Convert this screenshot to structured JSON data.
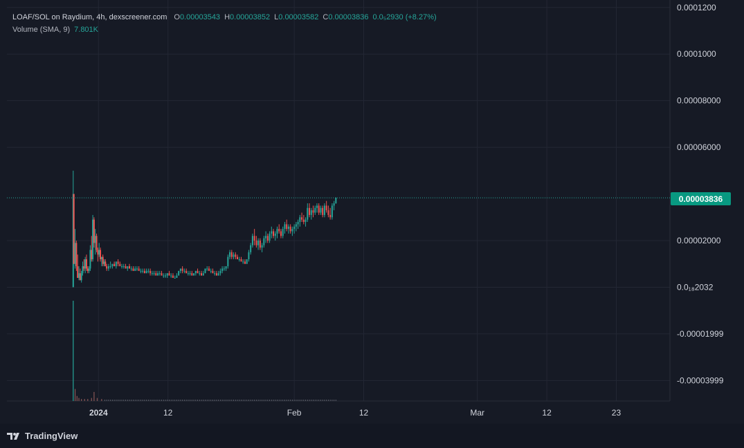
{
  "legend": {
    "pair": "LOAF/SOL on Raydium, 4h, dexscreener.com",
    "o_label": "O",
    "o_value": "0.00003543",
    "h_label": "H",
    "h_value": "0.00003852",
    "l_label": "L",
    "l_value": "0.00003582",
    "c_label": "C",
    "c_value": "0.00003836",
    "change": "0.0₅2930 (+8.27%)",
    "volume_label": "Volume (SMA, 9)",
    "volume_value": "7.801K"
  },
  "footer": {
    "brand": "TradingView"
  },
  "last_price_label": "0.00003836",
  "colors": {
    "up": "#26a69a",
    "down": "#ef5350",
    "bg": "#161a25",
    "grid": "#232734"
  },
  "chart_data": {
    "type": "candlestick",
    "title": "LOAF/SOL on Raydium, 4h, dexscreener.com",
    "y_ticks": [
      {
        "value": 0.00012,
        "label": "0.0001200"
      },
      {
        "value": 0.0001,
        "label": "0.0001000"
      },
      {
        "value": 8e-05,
        "label": "0.00008000"
      },
      {
        "value": 6e-05,
        "label": "0.00006000"
      },
      {
        "value": 2e-05,
        "label": "0.00002000"
      },
      {
        "value": 0.0,
        "label": "0.0₁₈2032"
      },
      {
        "value": -2e-05,
        "label": "-0.00001999"
      },
      {
        "value": -4e-05,
        "label": "-0.00003999"
      }
    ],
    "ylim": [
      -4.88e-05,
      0.0001232
    ],
    "x_ticks": [
      {
        "value": 4,
        "label": "2024",
        "bold": true
      },
      {
        "value": 15,
        "label": "12"
      },
      {
        "value": 35,
        "label": "Feb"
      },
      {
        "value": 46,
        "label": "12"
      },
      {
        "value": 64,
        "label": "Mar"
      },
      {
        "value": 75,
        "label": "12"
      },
      {
        "value": 86,
        "label": "23"
      }
    ],
    "xlim": [
      -10.5,
      94.5
    ],
    "last_price": 3.836e-05,
    "candles": [
      [
        0.0,
        0.0,
        5e-05,
        0.0,
        4e-05
      ],
      [
        0.1,
        4e-05,
        4e-05,
        1e-05,
        1e-05
      ],
      [
        0.3,
        1e-05,
        2.5e-05,
        8e-06,
        1.9e-05
      ],
      [
        0.5,
        1.9e-05,
        2e-05,
        7e-06,
        9e-06
      ],
      [
        0.7,
        9e-06,
        1.4e-05,
        4e-06,
        4e-06
      ],
      [
        0.9,
        4e-06,
        9e-06,
        3e-06,
        6e-06
      ],
      [
        1.1,
        6e-06,
        8e-06,
        3e-06,
        3e-06
      ],
      [
        1.3,
        3e-06,
        7e-06,
        2e-06,
        6e-06
      ],
      [
        1.5,
        6e-06,
        1.1e-05,
        5e-06,
        9e-06
      ],
      [
        1.7,
        9e-06,
        1.2e-05,
        7e-06,
        8e-06
      ],
      [
        1.9,
        8e-06,
        1.3e-05,
        6e-06,
        1.2e-05
      ],
      [
        2.1,
        1.2e-05,
        1.4e-05,
        7e-06,
        8e-06
      ],
      [
        2.3,
        8e-06,
        9e-06,
        6e-06,
        7e-06
      ],
      [
        2.5,
        7e-06,
        9e-06,
        6e-06,
        8e-06
      ],
      [
        2.7,
        8e-06,
        1.8e-05,
        7e-06,
        1.6e-05
      ],
      [
        2.9,
        1.6e-05,
        2.2e-05,
        1.1e-05,
        1.2e-05
      ],
      [
        3.1,
        1.2e-05,
        3.1e-05,
        1.1e-05,
        2.9e-05
      ],
      [
        3.3,
        2.9e-05,
        3e-05,
        1.7e-05,
        1.9e-05
      ],
      [
        3.5,
        1.9e-05,
        2.5e-05,
        1.4e-05,
        2.2e-05
      ],
      [
        3.7,
        2.2e-05,
        2.3e-05,
        1.5e-05,
        1.6e-05
      ],
      [
        3.9,
        1.6e-05,
        1.7e-05,
        1.1e-05,
        1.4e-05
      ],
      [
        4.1,
        1.4e-05,
        1.9e-05,
        1.3e-05,
        1.6e-05
      ],
      [
        4.3,
        1.6e-05,
        1.7e-05,
        1.1e-05,
        1.2e-05
      ],
      [
        4.5,
        1.2e-05,
        1.3e-05,
        9e-06,
        1.3e-05
      ],
      [
        4.7,
        1.3e-05,
        1.4e-05,
        9e-06,
        1e-05
      ],
      [
        4.9,
        1e-05,
        1.2e-05,
        9e-06,
        1.1e-05
      ],
      [
        5.1,
        1.1e-05,
        1.2e-05,
        9e-06,
        9e-06
      ],
      [
        5.3,
        9e-06,
        1e-05,
        7e-06,
        8e-06
      ],
      [
        5.6,
        8e-06,
        1e-05,
        7e-06,
        9e-06
      ],
      [
        5.9,
        9e-06,
        1.1e-05,
        8e-06,
        9e-06
      ],
      [
        6.2,
        9e-06,
        1e-05,
        8e-06,
        1e-05
      ],
      [
        6.5,
        1e-05,
        1.1e-05,
        9e-06,
        9e-06
      ],
      [
        6.8,
        9e-06,
        1.1e-05,
        8e-06,
        1.1e-05
      ],
      [
        7.1,
        1.1e-05,
        1.2e-05,
        9e-06,
        1e-05
      ],
      [
        7.4,
        1e-05,
        1.1e-05,
        9e-06,
        9e-06
      ],
      [
        7.7,
        9e-06,
        1e-05,
        8e-06,
        9e-06
      ],
      [
        8.0,
        9e-06,
        1e-05,
        8e-06,
        9e-06
      ],
      [
        8.3,
        9e-06,
        1e-05,
        8e-06,
        8e-06
      ],
      [
        8.6,
        8e-06,
        9e-06,
        7e-06,
        9e-06
      ],
      [
        8.9,
        9e-06,
        1e-05,
        8e-06,
        8e-06
      ],
      [
        9.2,
        8e-06,
        9e-06,
        7e-06,
        8e-06
      ],
      [
        9.5,
        8e-06,
        9e-06,
        7e-06,
        7e-06
      ],
      [
        9.8,
        7e-06,
        9e-06,
        7e-06,
        8e-06
      ],
      [
        10.1,
        8e-06,
        9e-06,
        7e-06,
        8e-06
      ],
      [
        10.4,
        8e-06,
        9e-06,
        7e-06,
        7e-06
      ],
      [
        10.7,
        7e-06,
        8e-06,
        6e-06,
        7e-06
      ],
      [
        11.0,
        7e-06,
        8e-06,
        6e-06,
        7e-06
      ],
      [
        11.3,
        7e-06,
        8e-06,
        6e-06,
        6e-06
      ],
      [
        11.6,
        6e-06,
        8e-06,
        6e-06,
        7e-06
      ],
      [
        11.9,
        7e-06,
        8e-06,
        6e-06,
        7e-06
      ],
      [
        12.2,
        7e-06,
        8e-06,
        5e-06,
        6e-06
      ],
      [
        12.5,
        6e-06,
        7e-06,
        5e-06,
        6e-06
      ],
      [
        12.8,
        6e-06,
        7e-06,
        5e-06,
        6e-06
      ],
      [
        13.1,
        6e-06,
        7e-06,
        5e-06,
        5e-06
      ],
      [
        13.4,
        5e-06,
        7e-06,
        5e-06,
        6e-06
      ],
      [
        13.7,
        6e-06,
        7e-06,
        5e-06,
        6e-06
      ],
      [
        14.0,
        6e-06,
        7e-06,
        5e-06,
        5e-06
      ],
      [
        14.3,
        5e-06,
        6e-06,
        4e-06,
        5e-06
      ],
      [
        14.6,
        5e-06,
        6e-06,
        4e-06,
        5e-06
      ],
      [
        14.9,
        5e-06,
        6e-06,
        4e-06,
        6e-06
      ],
      [
        15.2,
        6e-06,
        7e-06,
        5e-06,
        5e-06
      ],
      [
        15.5,
        5e-06,
        6e-06,
        4e-06,
        5e-06
      ],
      [
        15.8,
        5e-06,
        6e-06,
        4e-06,
        4e-06
      ],
      [
        16.1,
        4e-06,
        5e-06,
        4e-06,
        4e-06
      ],
      [
        16.4,
        4e-06,
        6e-06,
        4e-06,
        5e-06
      ],
      [
        16.7,
        5e-06,
        7e-06,
        5e-06,
        7e-06
      ],
      [
        17.0,
        7e-06,
        8e-06,
        6e-06,
        8e-06
      ],
      [
        17.3,
        8e-06,
        9e-06,
        6e-06,
        7e-06
      ],
      [
        17.6,
        7e-06,
        8e-06,
        6e-06,
        7e-06
      ],
      [
        17.9,
        7e-06,
        8e-06,
        6e-06,
        6e-06
      ],
      [
        18.2,
        6e-06,
        7e-06,
        5e-06,
        6e-06
      ],
      [
        18.5,
        6e-06,
        7e-06,
        5e-06,
        6e-06
      ],
      [
        18.8,
        6e-06,
        7e-06,
        5e-06,
        5e-06
      ],
      [
        19.1,
        5e-06,
        6e-06,
        5e-06,
        6e-06
      ],
      [
        19.4,
        6e-06,
        7e-06,
        5e-06,
        7e-06
      ],
      [
        19.7,
        7e-06,
        8e-06,
        6e-06,
        6e-06
      ],
      [
        20.0,
        6e-06,
        7e-06,
        5e-06,
        6e-06
      ],
      [
        20.3,
        6e-06,
        7e-06,
        5e-06,
        5e-06
      ],
      [
        20.6,
        5e-06,
        7e-06,
        5e-06,
        6e-06
      ],
      [
        20.9,
        6e-06,
        8e-06,
        6e-06,
        8e-06
      ],
      [
        21.2,
        8e-06,
        9e-06,
        7e-06,
        8e-06
      ],
      [
        21.5,
        8e-06,
        9e-06,
        7e-06,
        7e-06
      ],
      [
        21.8,
        7e-06,
        8e-06,
        6e-06,
        7e-06
      ],
      [
        22.1,
        7e-06,
        8e-06,
        6e-06,
        6e-06
      ],
      [
        22.4,
        6e-06,
        7e-06,
        5e-06,
        6e-06
      ],
      [
        22.7,
        6e-06,
        7e-06,
        5e-06,
        5e-06
      ],
      [
        23.0,
        5e-06,
        7e-06,
        5e-06,
        6e-06
      ],
      [
        23.3,
        6e-06,
        8e-06,
        5e-06,
        7e-06
      ],
      [
        23.6,
        7e-06,
        9e-06,
        6e-06,
        8e-06
      ],
      [
        23.9,
        8e-06,
        9e-06,
        7e-06,
        8e-06
      ],
      [
        24.2,
        8e-06,
        9e-06,
        7e-06,
        9e-06
      ],
      [
        24.5,
        9e-06,
        1.4e-05,
        8e-06,
        1.3e-05
      ],
      [
        24.8,
        1.3e-05,
        1.6e-05,
        1.2e-05,
        1.5e-05
      ],
      [
        25.1,
        1.5e-05,
        1.6e-05,
        1.2e-05,
        1.3e-05
      ],
      [
        25.4,
        1.3e-05,
        1.5e-05,
        1.2e-05,
        1.4e-05
      ],
      [
        25.7,
        1.4e-05,
        1.5e-05,
        1.2e-05,
        1.3e-05
      ],
      [
        26.0,
        1.3e-05,
        1.4e-05,
        1.2e-05,
        1.2e-05
      ],
      [
        26.3,
        1.2e-05,
        1.3e-05,
        1.1e-05,
        1.2e-05
      ],
      [
        26.6,
        1.2e-05,
        1.3e-05,
        1.1e-05,
        1.1e-05
      ],
      [
        26.9,
        1.1e-05,
        1.2e-05,
        1e-05,
        1.1e-05
      ],
      [
        27.2,
        1.1e-05,
        1.2e-05,
        1e-05,
        1e-05
      ],
      [
        27.5,
        1e-05,
        1.2e-05,
        1e-05,
        1.2e-05
      ],
      [
        27.8,
        1.2e-05,
        1.6e-05,
        1.1e-05,
        1.5e-05
      ],
      [
        28.1,
        1.5e-05,
        1.9e-05,
        1.4e-05,
        1.8e-05
      ],
      [
        28.4,
        1.8e-05,
        2.3e-05,
        1.7e-05,
        2.2e-05
      ],
      [
        28.7,
        2.2e-05,
        2.5e-05,
        1.8e-05,
        2e-05
      ],
      [
        29.0,
        2e-05,
        2.2e-05,
        1.7e-05,
        1.8e-05
      ],
      [
        29.3,
        1.8e-05,
        2.1e-05,
        1.6e-05,
        2e-05
      ],
      [
        29.6,
        2e-05,
        2.1e-05,
        1.6e-05,
        1.7e-05
      ],
      [
        29.9,
        1.7e-05,
        1.9e-05,
        1.5e-05,
        1.8e-05
      ],
      [
        30.2,
        1.8e-05,
        2.2e-05,
        1.7e-05,
        2.1e-05
      ],
      [
        30.5,
        2.1e-05,
        2.4e-05,
        1.9e-05,
        2.2e-05
      ],
      [
        30.8,
        2.2e-05,
        2.3e-05,
        1.9e-05,
        2e-05
      ],
      [
        31.1,
        2e-05,
        2.4e-05,
        1.9e-05,
        2.3e-05
      ],
      [
        31.4,
        2.3e-05,
        2.6e-05,
        2.1e-05,
        2.4e-05
      ],
      [
        31.7,
        2.4e-05,
        2.5e-05,
        2.1e-05,
        2.2e-05
      ],
      [
        32.0,
        2.2e-05,
        2.4e-05,
        2e-05,
        2.3e-05
      ],
      [
        32.3,
        2.3e-05,
        2.6e-05,
        2.1e-05,
        2.5e-05
      ],
      [
        32.6,
        2.5e-05,
        2.7e-05,
        2.3e-05,
        2.4e-05
      ],
      [
        32.9,
        2.4e-05,
        2.5e-05,
        2.1e-05,
        2.2e-05
      ],
      [
        33.2,
        2.2e-05,
        2.6e-05,
        2.1e-05,
        2.5e-05
      ],
      [
        33.5,
        2.5e-05,
        2.8e-05,
        2.3e-05,
        2.7e-05
      ],
      [
        33.8,
        2.7e-05,
        2.9e-05,
        2.4e-05,
        2.5e-05
      ],
      [
        34.1,
        2.5e-05,
        2.7e-05,
        2.3e-05,
        2.6e-05
      ],
      [
        34.4,
        2.6e-05,
        2.7e-05,
        2.3e-05,
        2.4e-05
      ],
      [
        34.7,
        2.4e-05,
        2.6e-05,
        2.2e-05,
        2.5e-05
      ],
      [
        35.0,
        2.5e-05,
        2.7e-05,
        2.3e-05,
        2.6e-05
      ],
      [
        35.3,
        2.6e-05,
        2.8e-05,
        2.4e-05,
        2.7e-05
      ],
      [
        35.6,
        2.7e-05,
        2.9e-05,
        2.5e-05,
        2.8e-05
      ],
      [
        35.9,
        2.8e-05,
        3.1e-05,
        2.6e-05,
        3e-05
      ],
      [
        36.2,
        3e-05,
        3.2e-05,
        2.8e-05,
        2.9e-05
      ],
      [
        36.5,
        2.9e-05,
        3.1e-05,
        2.7e-05,
        2.8e-05
      ],
      [
        36.8,
        2.8e-05,
        3e-05,
        2.6e-05,
        2.9e-05
      ],
      [
        37.1,
        2.9e-05,
        3.6e-05,
        2.8e-05,
        3.4e-05
      ],
      [
        37.4,
        3.4e-05,
        3.6e-05,
        3e-05,
        3.1e-05
      ],
      [
        37.7,
        3.1e-05,
        3.4e-05,
        2.9e-05,
        3.3e-05
      ],
      [
        38.0,
        3.3e-05,
        3.5e-05,
        3e-05,
        3.2e-05
      ],
      [
        38.3,
        3.2e-05,
        3.5e-05,
        3.1e-05,
        3.4e-05
      ],
      [
        38.6,
        3.4e-05,
        3.6e-05,
        3.2e-05,
        3.5e-05
      ],
      [
        38.9,
        3.5e-05,
        3.6e-05,
        3.1e-05,
        3.2e-05
      ],
      [
        39.2,
        3.2e-05,
        3.5e-05,
        3.1e-05,
        3.4e-05
      ],
      [
        39.5,
        3.4e-05,
        3.5e-05,
        3e-05,
        3.1e-05
      ],
      [
        39.8,
        3.1e-05,
        3.6e-05,
        3e-05,
        3.5e-05
      ],
      [
        40.1,
        3.5e-05,
        3.7e-05,
        3.2e-05,
        3.3e-05
      ],
      [
        40.4,
        3.3e-05,
        3.5e-05,
        3e-05,
        3.1e-05
      ],
      [
        40.7,
        3.1e-05,
        3.4e-05,
        2.9e-05,
        3e-05
      ],
      [
        41.0,
        3e-05,
        3.6e-05,
        2.9e-05,
        3.5e-05
      ],
      [
        41.3,
        3.5e-05,
        3.7e-05,
        3.3e-05,
        3.6e-05
      ],
      [
        41.6,
        3.6e-05,
        3.85e-05,
        3.58e-05,
        3.836e-05
      ]
    ],
    "volume": {
      "label": "Volume (SMA, 9)",
      "value_label": "7.801K",
      "bars": [
        [
          0.0,
          1.0
        ],
        [
          0.3,
          0.12
        ],
        [
          0.6,
          0.05
        ],
        [
          0.9,
          0.03
        ],
        [
          1.3,
          0.02
        ],
        [
          1.8,
          0.02
        ],
        [
          2.3,
          0.02
        ],
        [
          2.9,
          0.03
        ],
        [
          3.3,
          0.09
        ],
        [
          3.8,
          0.03
        ],
        [
          4.5,
          0.02
        ]
      ],
      "small_bar_range": [
        5.0,
        41.6
      ]
    }
  }
}
